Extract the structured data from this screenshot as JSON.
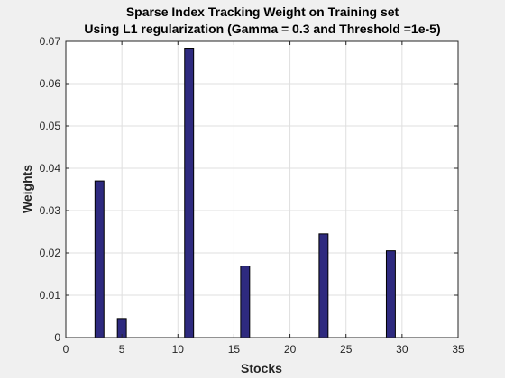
{
  "chart_data": {
    "type": "bar",
    "title": [
      "Sparse Index Tracking Weight on Training set",
      "Using L1 regularization (Gamma = 0.3 and Threshold =1e-5)"
    ],
    "xlabel": "Stocks",
    "ylabel": "Weights",
    "xlim": [
      0,
      35
    ],
    "ylim": [
      0,
      0.07
    ],
    "xticks": [
      0,
      5,
      10,
      15,
      20,
      25,
      30,
      35
    ],
    "yticks": [
      0,
      0.01,
      0.02,
      0.03,
      0.04,
      0.05,
      0.06,
      0.07
    ],
    "xtick_labels": [
      "0",
      "5",
      "10",
      "15",
      "20",
      "25",
      "30",
      "35"
    ],
    "ytick_labels": [
      "0",
      "0.01",
      "0.02",
      "0.03",
      "0.04",
      "0.05",
      "0.06",
      "0.07"
    ],
    "grid": true,
    "bar_color": "#2e2a7f",
    "bar_edge_color": "#000000",
    "x": [
      3,
      5,
      11,
      16,
      23,
      29
    ],
    "values": [
      0.037,
      0.0045,
      0.0684,
      0.0169,
      0.0245,
      0.0205
    ]
  }
}
